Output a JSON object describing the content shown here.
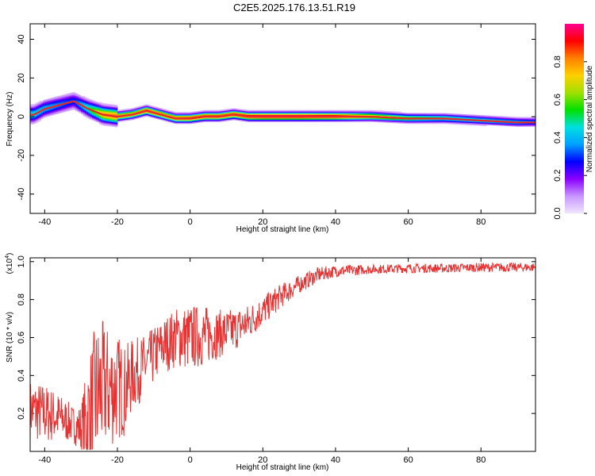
{
  "title": "C2E5.2025.176.13.51.R19",
  "colors": {
    "snr_line": "#e83232",
    "ridge": "#e82828",
    "colormap": [
      "#f0e6ff",
      "#c896ff",
      "#8a00ff",
      "#0000ff",
      "#00a0ff",
      "#00e0e0",
      "#00e000",
      "#a0e000",
      "#ffd000",
      "#ff8000",
      "#ff0000",
      "#ff0090"
    ]
  },
  "chart_data": [
    {
      "type": "heatmap",
      "xlabel": "Height of straight line (km)",
      "ylabel": "Frequency (Hz)",
      "xlim": [
        -44,
        95
      ],
      "ylim": [
        -50,
        48
      ],
      "xticks": [
        -40,
        -20,
        0,
        20,
        40,
        60,
        80
      ],
      "xtick_labels": [
        "-40",
        "-20",
        "0",
        "20",
        "40",
        "60",
        "80"
      ],
      "yticks": [
        -40,
        -20,
        0,
        20,
        40
      ],
      "ytick_labels": [
        "-40",
        "-20",
        "0",
        "20",
        "40"
      ],
      "colorbar": {
        "label": "Normalized spectral amplitude",
        "range": [
          0,
          1
        ],
        "ticks": [
          0.0,
          0.2,
          0.4,
          0.6,
          0.8
        ],
        "tick_labels": [
          "0.0",
          "0.2",
          "0.4",
          "0.6",
          "0.8"
        ]
      },
      "ridge": {
        "x": [
          -43,
          -40,
          -36,
          -32,
          -28,
          -24,
          -20,
          -16,
          -12,
          -8,
          -4,
          0,
          4,
          8,
          12,
          16,
          20,
          30,
          40,
          50,
          60,
          70,
          80,
          90,
          94
        ],
        "freq": [
          1,
          4,
          6,
          8,
          4,
          1,
          0,
          1,
          3,
          1,
          -1,
          -1,
          0,
          0,
          1,
          0,
          0,
          0,
          0,
          0,
          -1,
          -1,
          -2,
          -3,
          -3
        ],
        "amplitude": [
          0.45,
          0.4,
          0.35,
          0.3,
          0.5,
          0.8,
          0.85,
          0.8,
          0.9,
          0.85,
          0.85,
          0.9,
          0.9,
          0.9,
          0.9,
          0.95,
          1.0,
          1.0,
          0.95,
          0.75,
          0.6,
          0.5,
          0.45,
          0.4,
          0.35
        ]
      }
    },
    {
      "type": "line",
      "xlabel": "Height of straight line (km)",
      "ylabel": "SNR (10 * v/v)",
      "yscale_note": "(x10",
      "yscale_exp": "4",
      "xlim": [
        -44,
        95
      ],
      "ylim": [
        0,
        1.02
      ],
      "xticks": [
        -40,
        -20,
        0,
        20,
        40,
        60,
        80
      ],
      "xtick_labels": [
        "-40",
        "-20",
        "0",
        "20",
        "40",
        "60",
        "80"
      ],
      "yticks": [
        0.2,
        0.4,
        0.6,
        0.8,
        1.0
      ],
      "ytick_labels": [
        "0.2",
        "0.4",
        "0.6",
        "0.8",
        "1.0"
      ],
      "x_range": [
        -44,
        95
      ],
      "envelope": {
        "x": [
          -44,
          -40,
          -36,
          -32,
          -30,
          -28,
          -26,
          -24,
          -22,
          -20,
          -18,
          -16,
          -12,
          -8,
          -4,
          0,
          4,
          8,
          12,
          16,
          20,
          25,
          30,
          35,
          40,
          50,
          60,
          70,
          80,
          90,
          95
        ],
        "y": [
          0.22,
          0.2,
          0.18,
          0.14,
          0.12,
          0.18,
          0.28,
          0.34,
          0.33,
          0.34,
          0.32,
          0.4,
          0.46,
          0.55,
          0.6,
          0.6,
          0.61,
          0.62,
          0.64,
          0.68,
          0.74,
          0.82,
          0.88,
          0.93,
          0.95,
          0.96,
          0.965,
          0.965,
          0.97,
          0.97,
          0.97
        ],
        "noise": [
          0.1,
          0.1,
          0.08,
          0.06,
          0.08,
          0.2,
          0.25,
          0.22,
          0.2,
          0.18,
          0.15,
          0.12,
          0.1,
          0.09,
          0.1,
          0.11,
          0.1,
          0.08,
          0.07,
          0.06,
          0.05,
          0.04,
          0.03,
          0.025,
          0.02,
          0.015,
          0.015,
          0.015,
          0.015,
          0.015,
          0.015
        ]
      }
    }
  ]
}
